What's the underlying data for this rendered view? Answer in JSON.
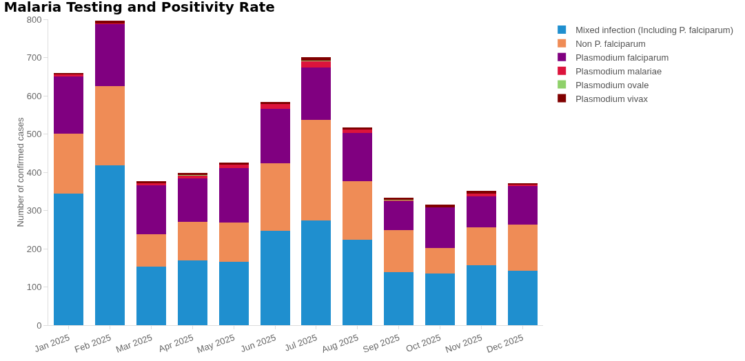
{
  "chart_data": {
    "type": "bar",
    "title": "Malaria Testing and Positivity Rate",
    "ylabel": "Number of confirmed cases",
    "stacked": true,
    "categories": [
      "Jan 2025",
      "Feb 2025",
      "Mar 2025",
      "Apr 2025",
      "May 2025",
      "Jun 2025",
      "Jul 2025",
      "Aug 2025",
      "Sep 2025",
      "Oct 2025",
      "Nov 2025",
      "Dec 2025"
    ],
    "series": [
      {
        "name": "Mixed infection (Including P. falciparum)",
        "color": "#1f8fcf",
        "values": [
          345,
          418,
          153,
          170,
          166,
          246,
          273,
          223,
          139,
          135,
          157,
          143
        ]
      },
      {
        "name": "Non P. falciparum",
        "color": "#ef8c56",
        "values": [
          156,
          208,
          85,
          100,
          103,
          178,
          264,
          153,
          110,
          66,
          98,
          120
        ]
      },
      {
        "name": "Plasmodium falciparum",
        "color": "#800080",
        "values": [
          150,
          162,
          127,
          114,
          142,
          142,
          136,
          126,
          76,
          107,
          82,
          101
        ]
      },
      {
        "name": "Plasmodium malariae",
        "color": "#dc143c",
        "values": [
          4,
          2,
          6,
          7,
          8,
          13,
          17,
          10,
          2,
          1,
          8,
          3
        ]
      },
      {
        "name": "Plasmodium ovale",
        "color": "#8fd16a",
        "values": [
          0,
          0,
          0,
          1,
          0,
          0,
          2,
          0,
          1,
          0,
          0,
          0
        ]
      },
      {
        "name": "Plasmodium vivax",
        "color": "#800000",
        "values": [
          4,
          7,
          6,
          6,
          6,
          4,
          9,
          5,
          6,
          6,
          6,
          5
        ]
      }
    ],
    "ylim": [
      0,
      800
    ],
    "yticks": [
      0,
      100,
      200,
      300,
      400,
      500,
      600,
      700,
      800
    ],
    "grid": false,
    "legend": "top right"
  }
}
